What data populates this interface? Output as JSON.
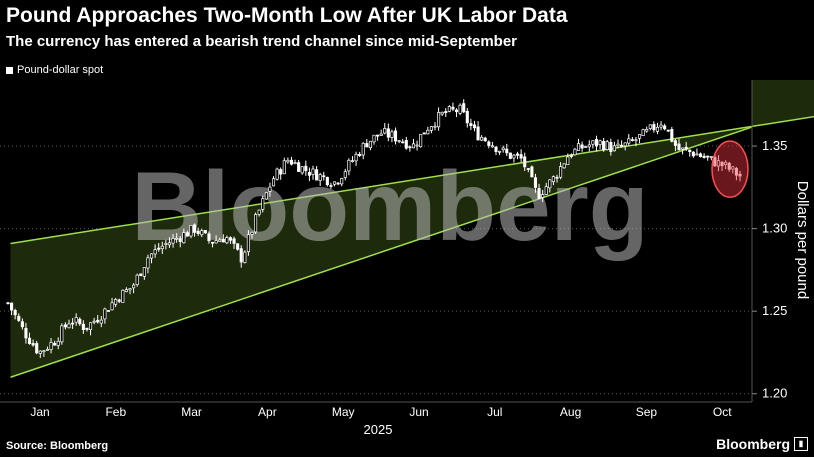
{
  "header": {
    "title": "Pound Approaches Two-Month Low After UK Labor Data",
    "subtitle": "The currency has entered a bearish trend channel since mid-September"
  },
  "legend": {
    "label": "Pound-dollar spot"
  },
  "watermark": "Bloomberg",
  "footer": {
    "source": "Source: Bloomberg",
    "brand": "Bloomberg",
    "brand_icon": "bar-chart-icon"
  },
  "colors": {
    "background": "#000000",
    "channel_fill": "#1d2a0b",
    "channel_line": "#9fe04a",
    "candle": "#ffffff",
    "highlight": "#e8333d"
  },
  "chart_data": {
    "type": "candlestick",
    "title": "Pound Approaches Two-Month Low After UK Labor Data",
    "subtitle": "The currency has entered a bearish trend channel since mid-September",
    "series_name": "Pound-dollar spot",
    "ylabel": "Dollars per pound",
    "xlabel": "2025",
    "ylim": [
      1.195,
      1.39
    ],
    "yticks": [
      "1.20",
      "1.25",
      "1.30",
      "1.35"
    ],
    "months": [
      "Jan",
      "Feb",
      "Mar",
      "Apr",
      "May",
      "Jun",
      "Jul",
      "Aug",
      "Sep",
      "Oct"
    ],
    "grid": "horizontal-dotted",
    "y_axis_side": "right",
    "weekly_close": [
      1.255,
      1.238,
      1.225,
      1.232,
      1.245,
      1.24,
      1.248,
      1.258,
      1.265,
      1.283,
      1.29,
      1.295,
      1.3,
      1.292,
      1.295,
      1.282,
      1.308,
      1.33,
      1.342,
      1.336,
      1.332,
      1.328,
      1.34,
      1.352,
      1.358,
      1.355,
      1.35,
      1.362,
      1.37,
      1.372,
      1.358,
      1.352,
      1.345,
      1.342,
      1.32,
      1.33,
      1.345,
      1.35,
      1.352,
      1.348,
      1.352,
      1.358,
      1.365,
      1.348,
      1.346,
      1.342,
      1.338,
      1.332
    ],
    "trend_channel": {
      "upper": [
        [
          "2025-01-02",
          1.291
        ],
        [
          "2025-09-26",
          1.355
        ]
      ],
      "lower": [
        [
          "2025-01-02",
          1.21
        ],
        [
          "2025-10-14",
          1.356
        ]
      ]
    },
    "highlight": "Mid-October decline marked with red ellipse"
  }
}
